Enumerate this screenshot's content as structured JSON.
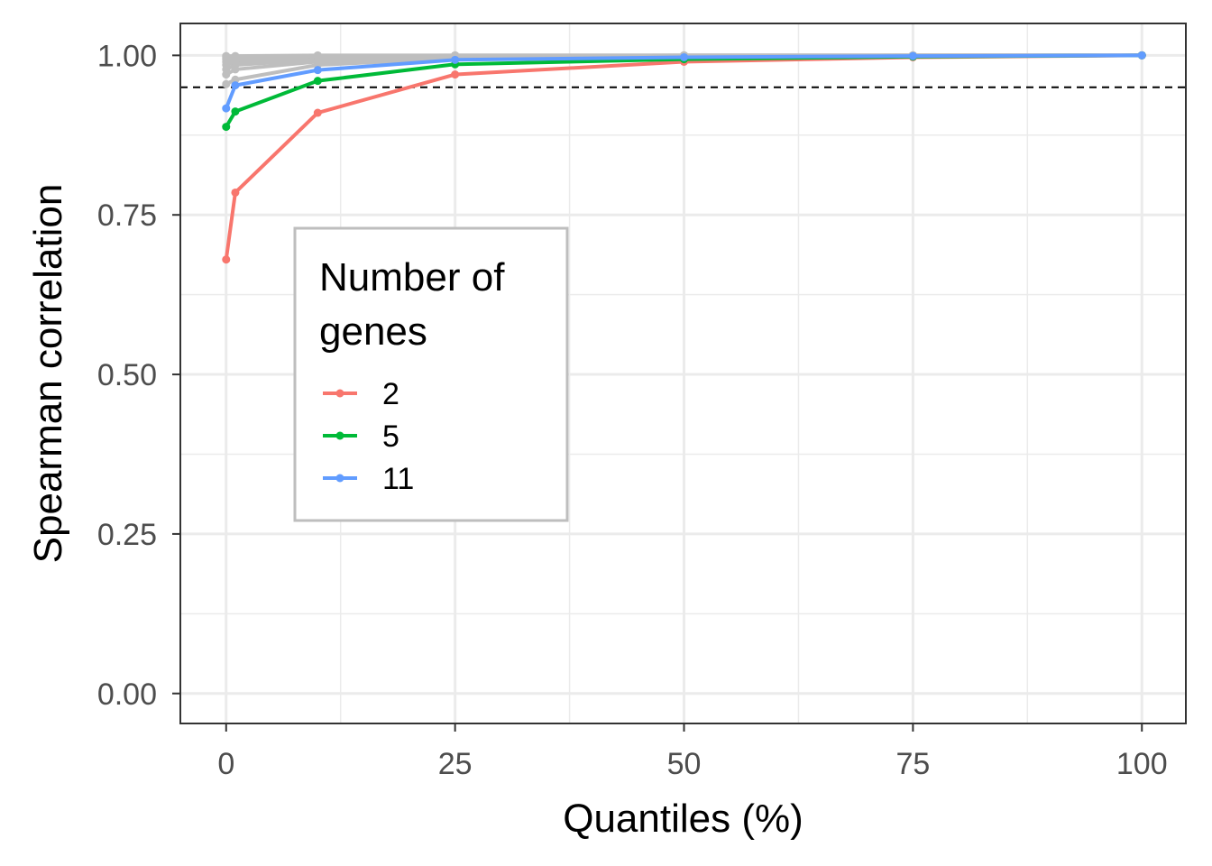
{
  "chart_data": {
    "type": "line",
    "xlabel": "Quantiles (%)",
    "ylabel": "Spearman correlation",
    "xlim": [
      -5,
      104.8
    ],
    "ylim": [
      -0.047,
      1.05
    ],
    "x_ticks": [
      0,
      25,
      50,
      75,
      100
    ],
    "y_ticks": [
      0.0,
      0.25,
      0.5,
      0.75,
      1.0
    ],
    "x_tick_labels": [
      "0",
      "25",
      "50",
      "75",
      "100"
    ],
    "y_tick_labels": [
      "0.00",
      "0.25",
      "0.50",
      "0.75",
      "1.00"
    ],
    "reference_line": {
      "y": 0.95,
      "style": "dashed",
      "color": "#000000"
    },
    "grid": true,
    "x": [
      0,
      1,
      10,
      25,
      50,
      75,
      100
    ],
    "series": [
      {
        "name": "2",
        "color": "#F8766D",
        "values": [
          0.68,
          0.785,
          0.91,
          0.97,
          0.99,
          0.997,
          1.0
        ]
      },
      {
        "name": "5",
        "color": "#00BA38",
        "values": [
          0.888,
          0.912,
          0.96,
          0.986,
          0.994,
          0.998,
          1.0
        ]
      },
      {
        "name": "11",
        "color": "#619CFF",
        "values": [
          0.917,
          0.953,
          0.977,
          0.993,
          0.997,
          0.999,
          1.0
        ]
      }
    ],
    "background_series": {
      "color": "#BEBEBE",
      "lines": [
        [
          0.955,
          0.962,
          0.985,
          0.995,
          0.998,
          0.999,
          1.0
        ],
        [
          0.97,
          0.978,
          0.99,
          0.997,
          0.999,
          1.0,
          1.0
        ],
        [
          0.978,
          0.985,
          0.993,
          0.998,
          0.999,
          1.0,
          1.0
        ],
        [
          0.985,
          0.99,
          0.995,
          0.998,
          0.999,
          1.0,
          1.0
        ],
        [
          0.99,
          0.993,
          0.997,
          0.999,
          1.0,
          1.0,
          1.0
        ],
        [
          0.994,
          0.996,
          0.998,
          0.999,
          1.0,
          1.0,
          1.0
        ],
        [
          0.997,
          0.998,
          0.999,
          1.0,
          1.0,
          1.0,
          1.0
        ],
        [
          0.999,
          0.999,
          1.0,
          1.0,
          1.0,
          1.0,
          1.0
        ]
      ]
    },
    "legend": {
      "title_lines": [
        "Number of",
        "genes"
      ],
      "placement": "inside-left",
      "entries": [
        "2",
        "5",
        "11"
      ]
    }
  }
}
